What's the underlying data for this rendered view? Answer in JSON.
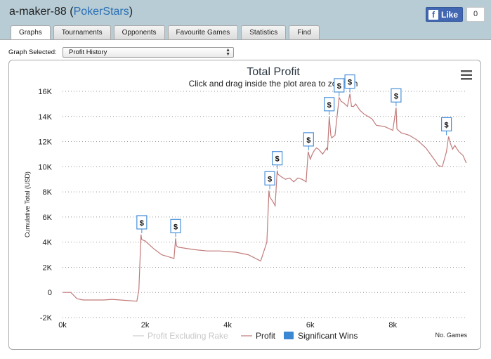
{
  "header": {
    "user": "a-maker-88",
    "site": "PokerStars"
  },
  "facebook": {
    "like_label": "Like",
    "like_count": "0"
  },
  "tabs": [
    "Graphs",
    "Tournaments",
    "Opponents",
    "Favourite Games",
    "Statistics",
    "Find"
  ],
  "active_tab": "Graphs",
  "graph_select": {
    "label": "Graph Selected:",
    "value": "Profit History"
  },
  "menu_icon": "hamburger-menu-icon",
  "chart_data": {
    "type": "line",
    "title": "Total Profit",
    "subtitle": "Click and drag inside the plot area to zoom-in",
    "xlabel": "No. Games",
    "ylabel": "Cumulative Total (USD)",
    "xlim": [
      0,
      9800
    ],
    "ylim": [
      -2000,
      16000
    ],
    "x_ticks": [
      "0k",
      "2k",
      "4k",
      "6k",
      "8k"
    ],
    "y_ticks": [
      "-2K",
      "0",
      "2K",
      "4K",
      "6K",
      "8K",
      "10K",
      "12K",
      "14K",
      "16K"
    ],
    "grid": true,
    "legend": [
      "Profit Excluding Rake",
      "Profit",
      "Significant Wins"
    ],
    "series": [
      {
        "name": "Profit",
        "color": "#c27a7a",
        "x": [
          0,
          200,
          350,
          500,
          800,
          1000,
          1200,
          1400,
          1600,
          1800,
          1850,
          1900,
          1920,
          2000,
          2200,
          2400,
          2600,
          2700,
          2740,
          2760,
          2800,
          3000,
          3200,
          3500,
          3800,
          4000,
          4200,
          4500,
          4800,
          4950,
          5000,
          5020,
          5040,
          5100,
          5150,
          5200,
          5220,
          5300,
          5400,
          5500,
          5600,
          5700,
          5800,
          5900,
          5950,
          6000,
          6050,
          6100,
          6150,
          6200,
          6300,
          6400,
          6420,
          6460,
          6500,
          6520,
          6600,
          6700,
          6750,
          6800,
          6900,
          6960,
          7000,
          7050,
          7100,
          7200,
          7300,
          7400,
          7500,
          7600,
          7800,
          8000,
          8080,
          8100,
          8200,
          8400,
          8600,
          8800,
          9000,
          9100,
          9200,
          9300,
          9350,
          9400,
          9450,
          9500,
          9600,
          9700,
          9780
        ],
        "y": [
          0,
          0,
          -500,
          -600,
          -600,
          -600,
          -550,
          -600,
          -650,
          -700,
          200,
          4600,
          4200,
          4100,
          3500,
          3000,
          2800,
          2700,
          4300,
          3700,
          3600,
          3500,
          3400,
          3300,
          3300,
          3250,
          3200,
          3000,
          2500,
          4000,
          8100,
          7600,
          7500,
          7200,
          6900,
          9700,
          9400,
          9200,
          9000,
          9100,
          8800,
          9100,
          9000,
          8800,
          11200,
          10600,
          11000,
          11300,
          11500,
          11400,
          11000,
          11500,
          11300,
          14000,
          12500,
          12300,
          12500,
          15500,
          15200,
          15100,
          14800,
          15800,
          14800,
          14800,
          15000,
          14500,
          14200,
          14000,
          13800,
          13300,
          13200,
          12900,
          14700,
          13000,
          12700,
          12500,
          12100,
          11500,
          10600,
          10100,
          10000,
          11200,
          12400,
          11800,
          11400,
          11700,
          11200,
          10900,
          10300
        ]
      }
    ],
    "significant_wins": [
      {
        "x": 1920,
        "y": 4600
      },
      {
        "x": 2740,
        "y": 4300
      },
      {
        "x": 5020,
        "y": 8100
      },
      {
        "x": 5200,
        "y": 9700
      },
      {
        "x": 5960,
        "y": 11200
      },
      {
        "x": 6460,
        "y": 14000
      },
      {
        "x": 6700,
        "y": 15500
      },
      {
        "x": 6960,
        "y": 15800
      },
      {
        "x": 8080,
        "y": 14700
      },
      {
        "x": 9300,
        "y": 12400
      }
    ],
    "flag_label": "$"
  }
}
